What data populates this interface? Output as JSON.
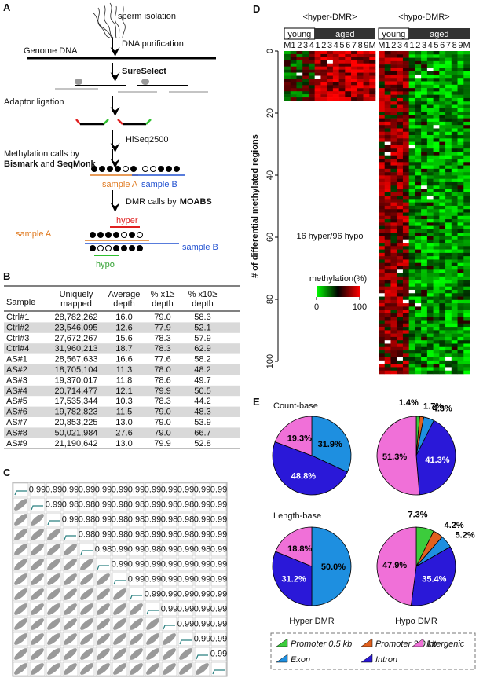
{
  "panel_a": {
    "label": "A",
    "sperm": "sperm isolation",
    "purification": "DNA purification",
    "genome": "Genome DNA",
    "sureselect": "SureSelect",
    "adaptor": "Adaptor ligation",
    "hiseq": "HiSeq2500",
    "meth_calls": "Methylation calls by",
    "bismark": "Bismark",
    "and": "and",
    "seqmonk": "SeqMonk",
    "sample_a": "sample A",
    "sample_b": "sample B",
    "dmr_calls": "DMR calls by",
    "moabs": "MOABS",
    "sample_a2": "sample A",
    "hyper": "hyper",
    "sample_b2": "sample B",
    "hypo": "hypo"
  },
  "panel_b": {
    "label": "B",
    "header": [
      [
        "Sample"
      ],
      [
        "Uniquely",
        "mapped"
      ],
      [
        "Average",
        "depth"
      ],
      [
        "% x1≥",
        "depth"
      ],
      [
        "% x10≥",
        "depth"
      ]
    ],
    "rows": [
      [
        "Ctrl#1",
        "28,782,262",
        "16.0",
        "79.0",
        "58.3"
      ],
      [
        "Ctrl#2",
        "23,546,095",
        "12.6",
        "77.9",
        "52.1"
      ],
      [
        "Ctrl#3",
        "27,672,267",
        "15.6",
        "78.3",
        "57.9"
      ],
      [
        "Ctrl#4",
        "31,960,213",
        "18.7",
        "78.3",
        "62.9"
      ],
      [
        "AS#1",
        "28,567,633",
        "16.6",
        "77.6",
        "58.2"
      ],
      [
        "AS#2",
        "18,705,104",
        "11.3",
        "78.0",
        "48.2"
      ],
      [
        "AS#3",
        "19,370,017",
        "11.8",
        "78.6",
        "49.7"
      ],
      [
        "AS#4",
        "20,714,477",
        "12.1",
        "79.9",
        "50.5"
      ],
      [
        "AS#5",
        "17,535,344",
        "10.3",
        "78.3",
        "44.2"
      ],
      [
        "AS#6",
        "19,782,823",
        "11.5",
        "79.0",
        "48.3"
      ],
      [
        "AS#7",
        "20,853,225",
        "13.0",
        "79.0",
        "53.9"
      ],
      [
        "AS#8",
        "50,021,984",
        "27.6",
        "79.0",
        "66.7"
      ],
      [
        "AS#9",
        "21,190,642",
        "13.0",
        "79.9",
        "52.8"
      ]
    ]
  },
  "panel_c": {
    "label": "C",
    "upper": [
      [
        "0.99",
        "0.99",
        "0.99",
        "0.99",
        "0.99",
        "0.99",
        "0.99",
        "0.99",
        "0.99",
        "0.99",
        "0.99",
        "0.99"
      ],
      [
        "0.99",
        "0.98",
        "0.98",
        "0.99",
        "0.98",
        "0.98",
        "0.99",
        "0.98",
        "0.98",
        "0.99",
        "0.99"
      ],
      [
        "0.99",
        "0.98",
        "0.99",
        "0.98",
        "0.98",
        "0.99",
        "0.98",
        "0.98",
        "0.99",
        "0.99"
      ],
      [
        "0.98",
        "0.99",
        "0.98",
        "0.98",
        "0.99",
        "0.98",
        "0.98",
        "0.99",
        "0.99"
      ],
      [
        "0.98",
        "0.99",
        "0.99",
        "0.98",
        "0.99",
        "0.99",
        "0.98",
        "0.99"
      ],
      [
        "0.99",
        "0.99",
        "0.99",
        "0.99",
        "0.99",
        "0.99",
        "0.99"
      ],
      [
        "0.99",
        "0.99",
        "0.99",
        "0.99",
        "0.99",
        "0.99"
      ],
      [
        "0.99",
        "0.99",
        "0.99",
        "0.99",
        "0.99"
      ],
      [
        "0.99",
        "0.99",
        "0.99",
        "0.99"
      ],
      [
        "0.99",
        "0.99",
        "0.99"
      ],
      [
        "0.99",
        "0.99"
      ],
      [
        "0.99"
      ]
    ]
  },
  "panel_d": {
    "label": "D",
    "hyper_title": "<hyper-DMR>",
    "hypo_title": "<hypo-DMR>",
    "groups": [
      "young",
      "aged"
    ],
    "columns": [
      "M",
      "1",
      "2",
      "3",
      "4",
      "1",
      "2",
      "3",
      "4",
      "5",
      "6",
      "7",
      "8",
      "9",
      "M"
    ]
  },
  "panel_e": {
    "label": "E",
    "row_titles": [
      "Count-base",
      "Length-base"
    ],
    "column_titles": [
      "Hyper DMR",
      "Hypo DMR"
    ]
  },
  "chart_data": [
    {
      "type": "pie",
      "categories": [
        "Exon",
        "Intron",
        "Intergenic"
      ],
      "values": [
        31.9,
        48.8,
        19.3
      ],
      "value_labels": [
        "31.9%",
        "48.8%",
        "19.3%"
      ]
    },
    {
      "type": "pie",
      "categories": [
        "Promoter 0.5 kb",
        "Promoter 2.0 kb",
        "Exon",
        "Intron",
        "Intergenic"
      ],
      "colors": [
        "#3ccc3c",
        "#e0601e",
        "#1e8fe0",
        "#2a18d8",
        "#f070d8"
      ],
      "values": [
        1.4,
        1.7,
        4.3,
        41.3,
        51.3
      ],
      "value_labels": [
        "1.4%",
        "1.7%",
        "4.3%",
        "41.3%",
        "51.3%"
      ]
    },
    {
      "type": "pie",
      "categories": [
        "Exon",
        "Intron",
        "Intergenic"
      ],
      "values": [
        50,
        31.2,
        18.8
      ],
      "value_labels": [
        "50.0%",
        "31.2%",
        "18.8%"
      ]
    },
    {
      "type": "pie",
      "categories": [
        "Promoter 0.5 kb",
        "Promoter 2.0 kb",
        "Exon",
        "Intron",
        "Intergenic"
      ],
      "values": [
        7.3,
        4.2,
        5.2,
        35.4,
        47.9
      ],
      "value_labels": [
        "7.3%",
        "4.2%",
        "5.2%",
        "35.4%",
        "47.9%"
      ]
    },
    {
      "type": "heatmap",
      "ylabel": "# of differential methylated regions",
      "ylim": [
        0,
        100
      ],
      "yticks": [
        0,
        20,
        40,
        60,
        80,
        100
      ],
      "annotation": "16 hyper/96 hypo",
      "colorbar_title": "methylation(%)",
      "colorbar_ticks": [
        0,
        100
      ]
    }
  ]
}
